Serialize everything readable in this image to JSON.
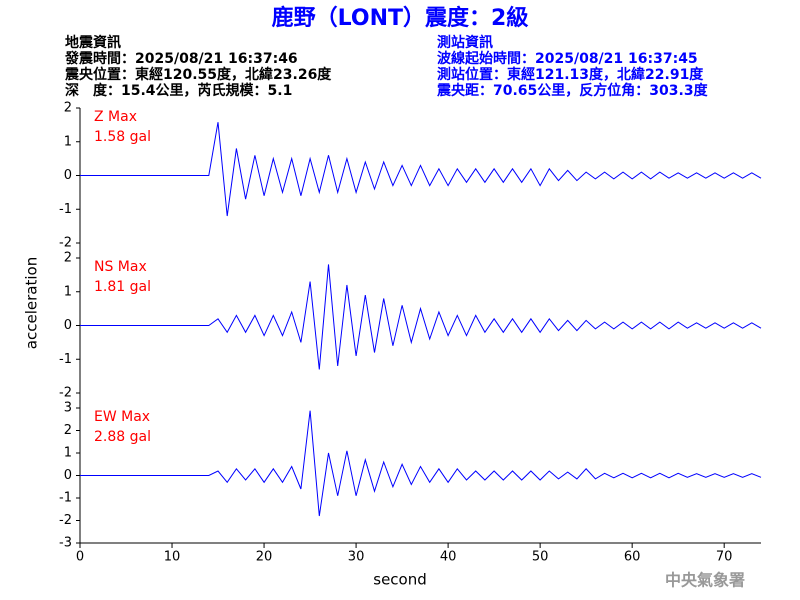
{
  "header": {
    "title": "鹿野（LONT）震度：2級",
    "left": [
      "地震資訊",
      "發震時間：2025/08/21 16:37:46",
      "震央位置：東經120.55度，北緯23.26度",
      "深　度：15.4公里，芮氏規模：5.1"
    ],
    "right": [
      "測站資訊",
      "波線起始時間：2025/08/21 16:37:45",
      "測站位置：東經121.13度，北緯22.91度",
      "震央距：70.65公里，反方位角：303.3度"
    ],
    "footer": "中央氣象署"
  },
  "chart_data": [
    {
      "type": "line",
      "name": "Z Max",
      "max_label": "1.58 gal",
      "label_color": "#ff0000",
      "color": "#0000ff",
      "xlim": [
        0,
        74
      ],
      "ylim": [
        -2,
        2
      ],
      "yticks": [
        -2,
        -1,
        0,
        1,
        2
      ],
      "x": [
        0,
        1,
        2,
        3,
        4,
        5,
        6,
        7,
        8,
        9,
        10,
        11,
        12,
        13,
        14,
        15,
        16,
        17,
        18,
        19,
        20,
        21,
        22,
        23,
        24,
        25,
        26,
        27,
        28,
        29,
        30,
        31,
        32,
        33,
        34,
        35,
        36,
        37,
        38,
        39,
        40,
        41,
        42,
        43,
        44,
        45,
        46,
        47,
        48,
        49,
        50,
        51,
        52,
        53,
        54,
        55,
        56,
        57,
        58,
        59,
        60,
        61,
        62,
        63,
        64,
        65,
        66,
        67,
        68,
        69,
        70,
        71,
        72,
        73,
        74
      ],
      "values": [
        0,
        0,
        0,
        0,
        0,
        0,
        0,
        0,
        0,
        0,
        0,
        0,
        0,
        0,
        0,
        1.58,
        -1.2,
        0.8,
        -0.7,
        0.6,
        -0.6,
        0.5,
        -0.5,
        0.5,
        -0.6,
        0.5,
        -0.5,
        0.6,
        -0.5,
        0.5,
        -0.5,
        0.4,
        -0.4,
        0.4,
        -0.3,
        0.3,
        -0.3,
        0.3,
        -0.3,
        0.2,
        -0.3,
        0.2,
        -0.2,
        0.2,
        -0.2,
        0.2,
        -0.2,
        0.2,
        -0.2,
        0.2,
        -0.3,
        0.2,
        -0.15,
        0.15,
        -0.15,
        0.1,
        -0.1,
        0.1,
        -0.1,
        0.1,
        -0.1,
        0.1,
        -0.1,
        0.1,
        -0.08,
        0.08,
        -0.08,
        0.08,
        -0.08,
        0.08,
        -0.08,
        0.08,
        -0.08,
        0.08,
        -0.08
      ]
    },
    {
      "type": "line",
      "name": "NS Max",
      "max_label": "1.81 gal",
      "label_color": "#ff0000",
      "color": "#0000ff",
      "xlim": [
        0,
        74
      ],
      "ylim": [
        -2,
        2
      ],
      "yticks": [
        -2,
        -1,
        0,
        1,
        2
      ],
      "ylabel": "acceleration",
      "x": [
        0,
        1,
        2,
        3,
        4,
        5,
        6,
        7,
        8,
        9,
        10,
        11,
        12,
        13,
        14,
        15,
        16,
        17,
        18,
        19,
        20,
        21,
        22,
        23,
        24,
        25,
        26,
        27,
        28,
        29,
        30,
        31,
        32,
        33,
        34,
        35,
        36,
        37,
        38,
        39,
        40,
        41,
        42,
        43,
        44,
        45,
        46,
        47,
        48,
        49,
        50,
        51,
        52,
        53,
        54,
        55,
        56,
        57,
        58,
        59,
        60,
        61,
        62,
        63,
        64,
        65,
        66,
        67,
        68,
        69,
        70,
        71,
        72,
        73,
        74
      ],
      "values": [
        0,
        0,
        0,
        0,
        0,
        0,
        0,
        0,
        0,
        0,
        0,
        0,
        0,
        0,
        0,
        0.2,
        -0.2,
        0.3,
        -0.2,
        0.3,
        -0.3,
        0.3,
        -0.3,
        0.4,
        -0.5,
        1.3,
        -1.3,
        1.81,
        -1.2,
        1.2,
        -0.9,
        0.9,
        -0.8,
        0.8,
        -0.6,
        0.6,
        -0.5,
        0.5,
        -0.4,
        0.4,
        -0.3,
        0.3,
        -0.3,
        0.3,
        -0.2,
        0.2,
        -0.2,
        0.2,
        -0.2,
        0.2,
        -0.2,
        0.2,
        -0.15,
        0.15,
        -0.15,
        0.15,
        -0.1,
        0.1,
        -0.1,
        0.1,
        -0.1,
        0.1,
        -0.1,
        0.1,
        -0.1,
        0.1,
        -0.08,
        0.08,
        -0.08,
        0.08,
        -0.08,
        0.08,
        -0.08,
        0.08,
        -0.08
      ]
    },
    {
      "type": "line",
      "name": "EW Max",
      "max_label": "2.88 gal",
      "label_color": "#ff0000",
      "color": "#0000ff",
      "xlim": [
        0,
        74
      ],
      "ylim": [
        -3,
        3
      ],
      "yticks": [
        -3,
        -2,
        -1,
        0,
        1,
        2,
        3
      ],
      "xticks": [
        0,
        10,
        20,
        30,
        40,
        50,
        60,
        70
      ],
      "xlabel": "second",
      "x": [
        0,
        1,
        2,
        3,
        4,
        5,
        6,
        7,
        8,
        9,
        10,
        11,
        12,
        13,
        14,
        15,
        16,
        17,
        18,
        19,
        20,
        21,
        22,
        23,
        24,
        25,
        26,
        27,
        28,
        29,
        30,
        31,
        32,
        33,
        34,
        35,
        36,
        37,
        38,
        39,
        40,
        41,
        42,
        43,
        44,
        45,
        46,
        47,
        48,
        49,
        50,
        51,
        52,
        53,
        54,
        55,
        56,
        57,
        58,
        59,
        60,
        61,
        62,
        63,
        64,
        65,
        66,
        67,
        68,
        69,
        70,
        71,
        72,
        73,
        74
      ],
      "values": [
        0,
        0,
        0,
        0,
        0,
        0,
        0,
        0,
        0,
        0,
        0,
        0,
        0,
        0,
        0,
        0.2,
        -0.3,
        0.3,
        -0.2,
        0.3,
        -0.3,
        0.3,
        -0.3,
        0.4,
        -0.6,
        2.88,
        -1.8,
        1.0,
        -0.9,
        1.1,
        -0.9,
        0.7,
        -0.7,
        0.6,
        -0.5,
        0.5,
        -0.4,
        0.4,
        -0.3,
        0.3,
        -0.3,
        0.3,
        -0.2,
        0.2,
        -0.2,
        0.2,
        -0.2,
        0.2,
        -0.2,
        0.2,
        -0.2,
        0.2,
        -0.15,
        0.15,
        -0.15,
        0.3,
        -0.15,
        0.1,
        -0.1,
        0.1,
        -0.1,
        0.1,
        -0.1,
        0.1,
        -0.1,
        0.1,
        -0.08,
        0.08,
        -0.08,
        0.08,
        -0.08,
        0.08,
        -0.08,
        0.08,
        -0.08
      ]
    }
  ]
}
